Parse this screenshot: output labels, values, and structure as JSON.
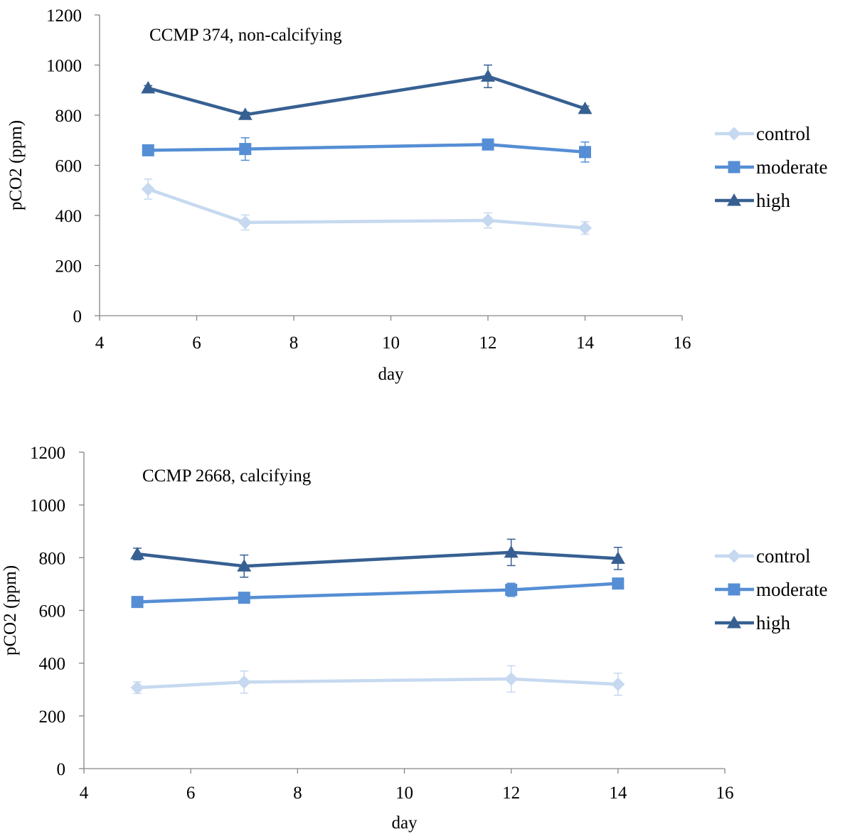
{
  "chart_data": [
    {
      "type": "line",
      "title": "CCMP 374, non-calcifying",
      "xlabel": "day",
      "ylabel": "pCO2 (ppm)",
      "xlim": [
        4,
        16
      ],
      "ylim": [
        0,
        1200
      ],
      "xticks": [
        4,
        6,
        8,
        10,
        12,
        14,
        16
      ],
      "yticks": [
        0,
        200,
        400,
        600,
        800,
        1000,
        1200
      ],
      "grid": false,
      "legend_position": "right",
      "series": [
        {
          "name": "control",
          "marker": "diamond",
          "color": "#c6d9f0",
          "x": [
            5,
            7,
            12,
            14
          ],
          "values": [
            505,
            372,
            380,
            350
          ],
          "error": [
            40,
            30,
            30,
            25
          ]
        },
        {
          "name": "moderate",
          "marker": "square",
          "color": "#558ed5",
          "x": [
            5,
            7,
            12,
            14
          ],
          "values": [
            660,
            665,
            683,
            653
          ],
          "error": [
            12,
            45,
            12,
            40
          ]
        },
        {
          "name": "high",
          "marker": "triangle",
          "color": "#376092",
          "x": [
            5,
            7,
            12,
            14
          ],
          "values": [
            908,
            802,
            955,
            826
          ],
          "error": [
            10,
            10,
            45,
            10
          ]
        }
      ]
    },
    {
      "type": "line",
      "title": "CCMP 2668, calcifying",
      "xlabel": "day",
      "ylabel": "pCO2 (ppm)",
      "xlim": [
        4,
        16
      ],
      "ylim": [
        0,
        1200
      ],
      "xticks": [
        4,
        6,
        8,
        10,
        12,
        14,
        16
      ],
      "yticks": [
        0,
        200,
        400,
        600,
        800,
        1000,
        1200
      ],
      "grid": false,
      "legend_position": "right",
      "series": [
        {
          "name": "control",
          "marker": "diamond",
          "color": "#c6d9f0",
          "x": [
            5,
            7,
            12,
            14
          ],
          "values": [
            307,
            328,
            340,
            320
          ],
          "error": [
            22,
            42,
            50,
            42
          ]
        },
        {
          "name": "moderate",
          "marker": "square",
          "color": "#558ed5",
          "x": [
            5,
            7,
            12,
            14
          ],
          "values": [
            632,
            648,
            678,
            702
          ],
          "error": [
            10,
            20,
            25,
            10
          ]
        },
        {
          "name": "high",
          "marker": "triangle",
          "color": "#376092",
          "x": [
            5,
            7,
            12,
            14
          ],
          "values": [
            814,
            768,
            820,
            797
          ],
          "error": [
            22,
            42,
            50,
            42
          ]
        }
      ]
    }
  ]
}
